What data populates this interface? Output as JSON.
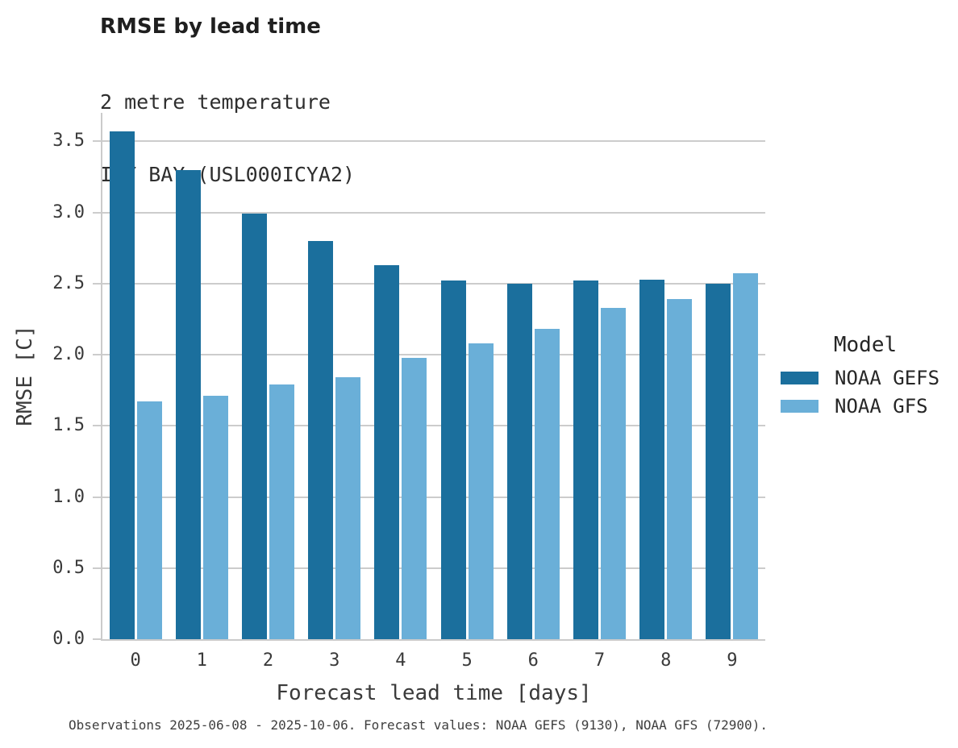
{
  "title": "RMSE by lead time",
  "subtitle_line1": "2 metre temperature",
  "subtitle_line2": "ICY BAY (USL000ICYA2)",
  "footer": "Observations 2025-06-08 - 2025-10-06. Forecast values: NOAA GEFS (9130), NOAA GFS (72900).",
  "colors": {
    "grid": "#cccccc",
    "spine": "#cbcbcb",
    "title_text": "#1f1f1f",
    "body_text": "#3a3a3a",
    "gefs_dark_blue": "#1b6f9d",
    "gfs_light_blue": "#6aafd8"
  },
  "chart_data": {
    "type": "bar",
    "title": "RMSE by lead time",
    "subtitle": [
      "2 metre temperature",
      "ICY BAY (USL000ICYA2)"
    ],
    "categories": [
      "0",
      "1",
      "2",
      "3",
      "4",
      "5",
      "6",
      "7",
      "8",
      "9"
    ],
    "series": [
      {
        "name": "NOAA GEFS",
        "color": "#1b6f9d",
        "values": [
          3.57,
          3.3,
          2.99,
          2.8,
          2.63,
          2.52,
          2.5,
          2.52,
          2.53,
          2.5
        ]
      },
      {
        "name": "NOAA GFS",
        "color": "#6aafd8",
        "values": [
          1.67,
          1.71,
          1.79,
          1.84,
          1.98,
          2.08,
          2.18,
          2.33,
          2.39,
          2.57
        ]
      }
    ],
    "xlabel": "Forecast lead time [days]",
    "ylabel": "RMSE [C]",
    "ylim": [
      0,
      3.7
    ],
    "yticks": [
      0.0,
      0.5,
      1.0,
      1.5,
      2.0,
      2.5,
      3.0,
      3.5
    ],
    "grid": "horizontal",
    "legend_title": "Model",
    "legend_position": "center-right"
  }
}
